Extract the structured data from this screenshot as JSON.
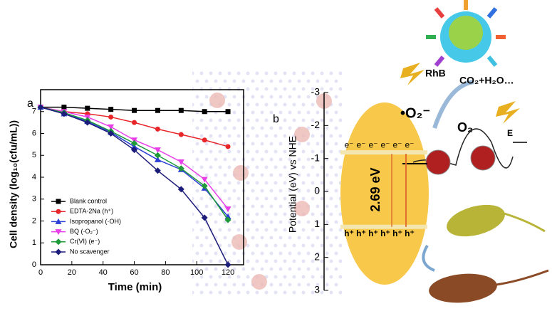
{
  "chart_data": [
    {
      "type": "line",
      "panel": "a",
      "ylabel": "Cell density (log₁₀(cfu/mL))",
      "xlabel": "Time (min)",
      "x": [
        0,
        15,
        30,
        45,
        60,
        75,
        90,
        105,
        120
      ],
      "xlim": [
        0,
        130
      ],
      "xticks": [
        0,
        20,
        40,
        60,
        80,
        100,
        120
      ],
      "ylim": [
        0,
        8
      ],
      "yticks": [
        0,
        1,
        2,
        3,
        4,
        5,
        6,
        7
      ],
      "legend": "lower-left",
      "series": [
        {
          "name": "Blank control",
          "color": "#000000",
          "marker": "square",
          "values": [
            7.2,
            7.2,
            7.15,
            7.1,
            7.05,
            7.05,
            7.05,
            7.0,
            7.0
          ]
        },
        {
          "name": "EDTA-2Na (h⁺)",
          "color": "#e8262a",
          "marker": "circle",
          "values": [
            7.2,
            7.0,
            6.9,
            6.75,
            6.5,
            6.2,
            5.95,
            5.7,
            5.4
          ]
        },
        {
          "name": "Isopropanol (·OH)",
          "color": "#2b3fd6",
          "marker": "triangle",
          "values": [
            7.2,
            6.9,
            6.55,
            6.05,
            5.4,
            4.8,
            4.35,
            3.5,
            2.2
          ]
        },
        {
          "name": "BQ (·O₂⁻)",
          "color": "#e83ee8",
          "marker": "triangle-down",
          "values": [
            7.2,
            7.0,
            6.75,
            6.3,
            5.7,
            5.25,
            4.7,
            3.9,
            2.55
          ]
        },
        {
          "name": "Cr(VI) (e⁻)",
          "color": "#1e9a3a",
          "marker": "diamond",
          "values": [
            7.2,
            6.95,
            6.6,
            6.1,
            5.55,
            5.0,
            4.4,
            3.6,
            2.05
          ]
        },
        {
          "name": "No scavenger",
          "color": "#1c1c7a",
          "marker": "diamond",
          "values": [
            7.2,
            6.9,
            6.5,
            6.0,
            5.25,
            4.3,
            3.45,
            2.15,
            0.0
          ]
        }
      ]
    },
    {
      "type": "band-diagram",
      "panel": "b",
      "ylabel": "Potential (eV) vs NHE",
      "ylim": [
        -3,
        3
      ],
      "inverted": true,
      "yticks": [
        -3,
        -2,
        -1,
        0,
        1,
        2,
        3
      ],
      "conduction_band": -1.4,
      "valence_band": 1.29,
      "gap_label": "2.69 eV",
      "electrons": [
        "e⁻",
        "e⁻",
        "e⁻",
        "e⁻",
        "e⁻",
        "e⁻"
      ],
      "holes": [
        "h⁺",
        "h⁺",
        "h⁺",
        "h⁺",
        "h⁺",
        "h⁺"
      ],
      "annotations": [
        "RhB",
        "CO₂+H₂O…",
        "•O₂⁻",
        "O₂",
        "E"
      ]
    }
  ]
}
